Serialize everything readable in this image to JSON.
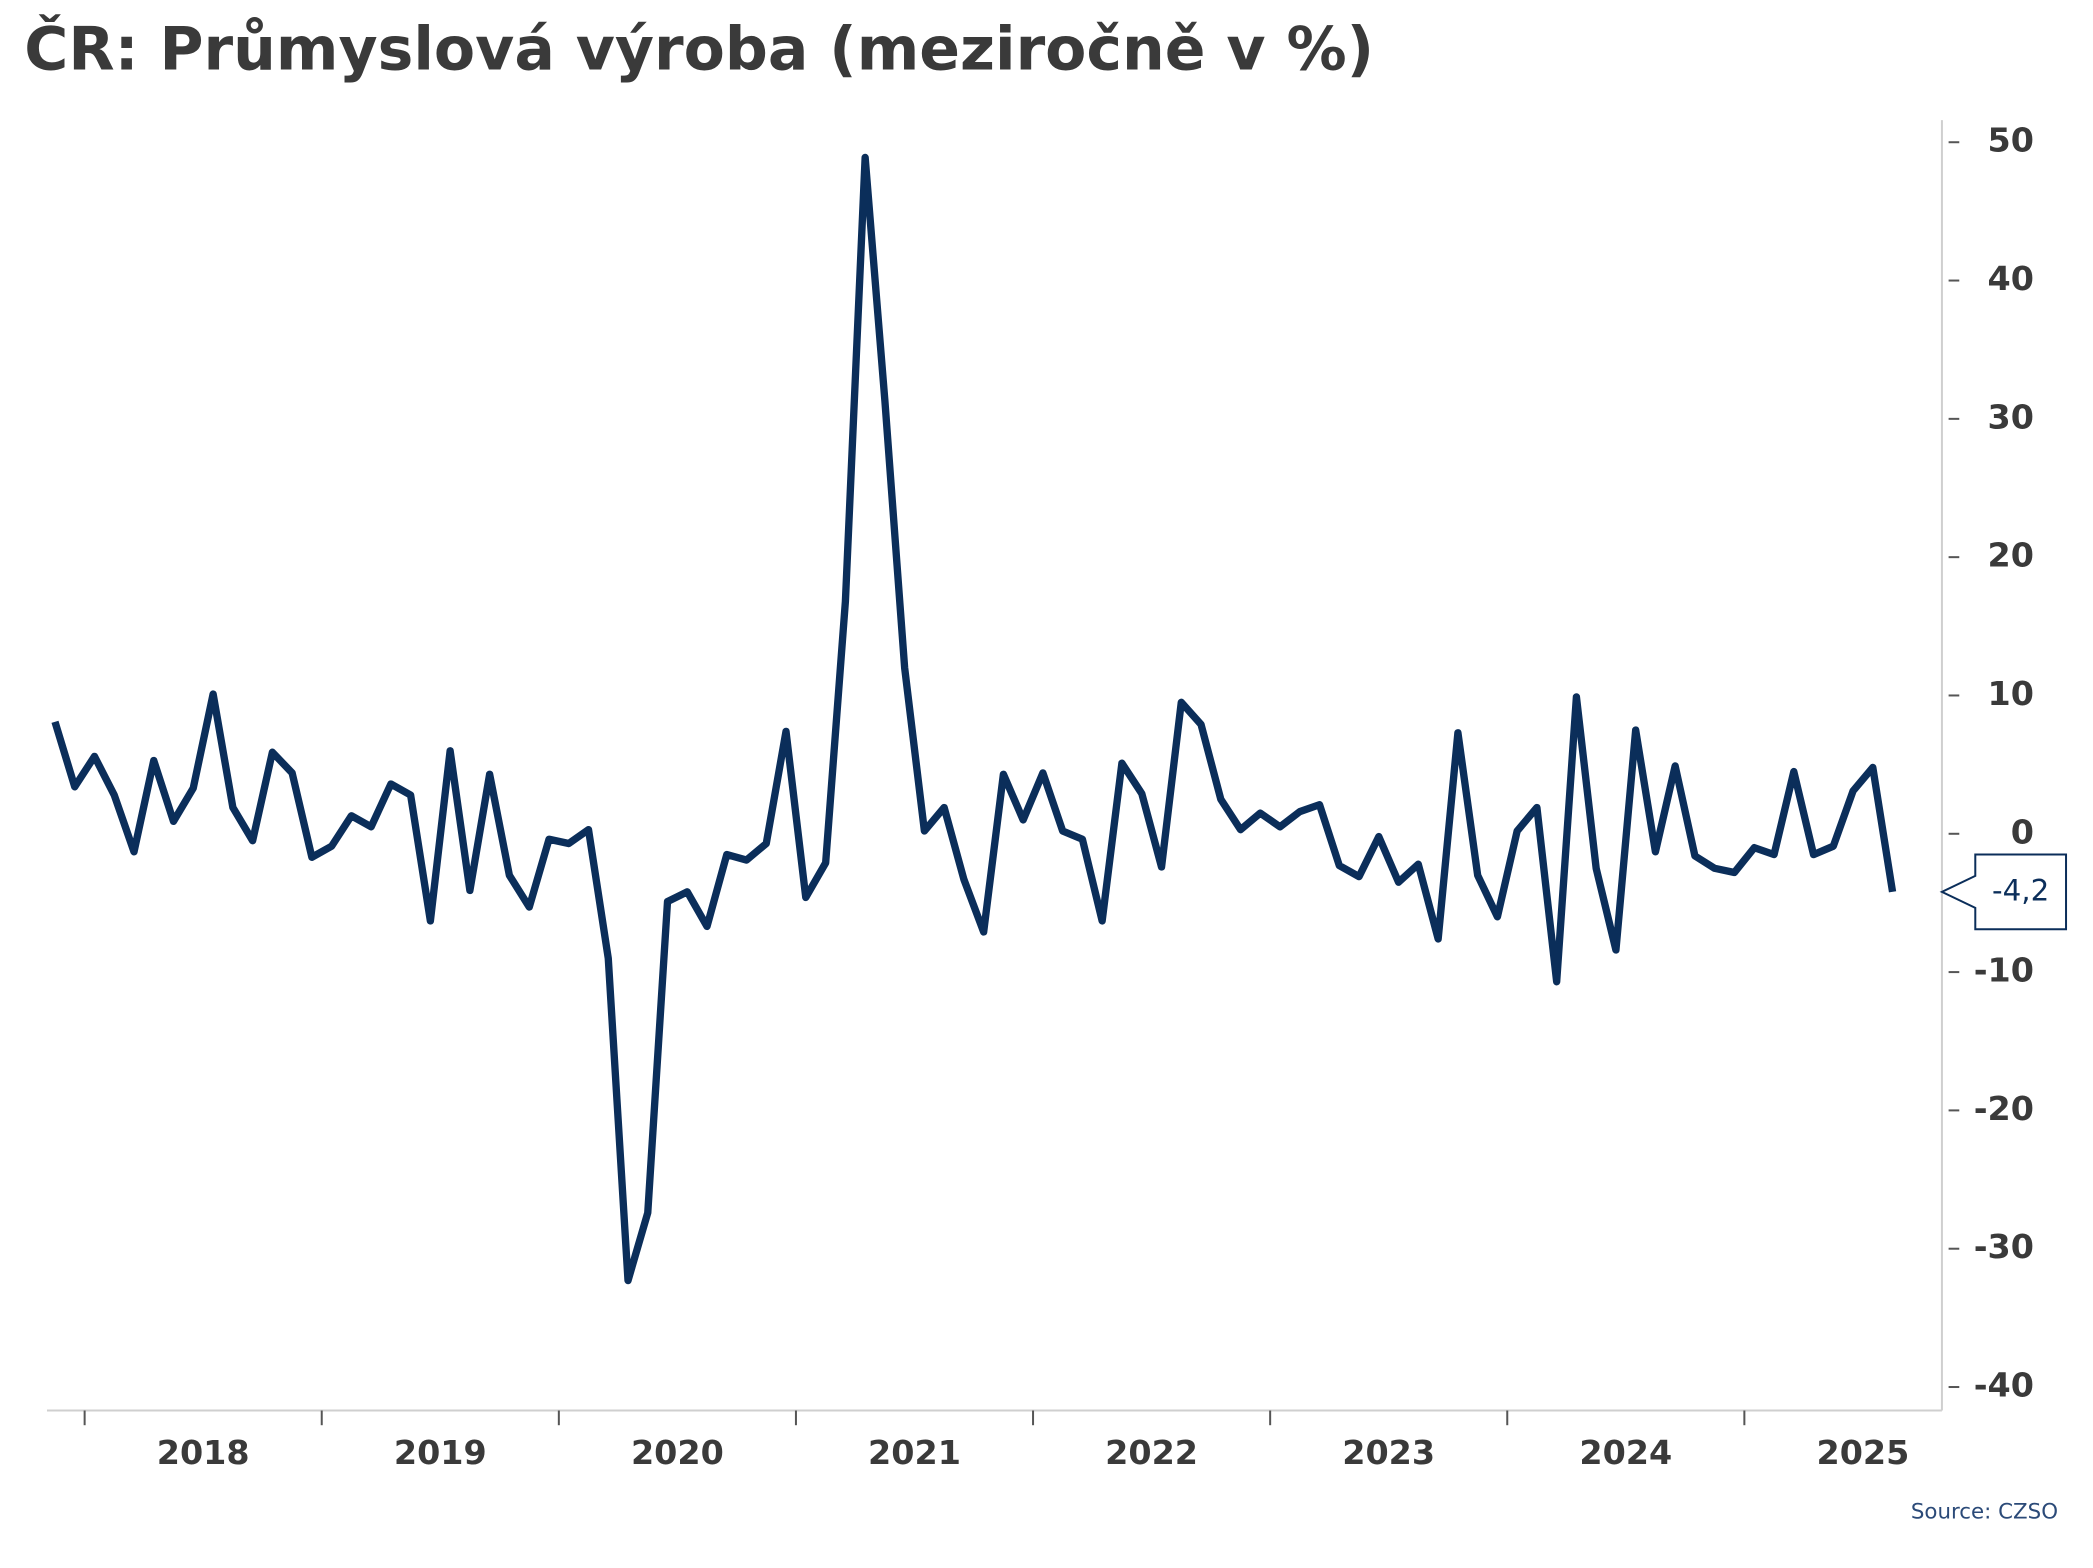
{
  "chart_data": {
    "type": "line",
    "title": "ČR: Průmyslová výroba (meziročně v %)",
    "source": "Source: CZSO",
    "categories": [
      null,
      null,
      "2018",
      null,
      null,
      null,
      null,
      null,
      null,
      null,
      null,
      null,
      null,
      null,
      "2019",
      null,
      null,
      null,
      null,
      null,
      null,
      null,
      null,
      null,
      null,
      null,
      "2020",
      null,
      null,
      null,
      null,
      null,
      null,
      null,
      null,
      null,
      null,
      null,
      "2021",
      null,
      null,
      null,
      null,
      null,
      null,
      null,
      null,
      null,
      null,
      null,
      "2022",
      null,
      null,
      null,
      null,
      null,
      null,
      null,
      null,
      null,
      null,
      null,
      "2023",
      null,
      null,
      null,
      null,
      null,
      null,
      null,
      null,
      null,
      null,
      null,
      "2024",
      null,
      null,
      null,
      null,
      null,
      null,
      null,
      null,
      null,
      null,
      null,
      "2025",
      null,
      null,
      null,
      null,
      null,
      null,
      null
    ],
    "series": [
      {
        "color": "#0b2e5a",
        "values": [
          8.1,
          3.4,
          5.6,
          2.8,
          -1.3,
          5.3,
          0.9,
          3.3,
          10.1,
          1.9,
          -0.5,
          5.9,
          4.4,
          -1.7,
          -0.9,
          1.3,
          0.5,
          3.6,
          2.8,
          -6.3,
          6.0,
          -4.1,
          4.3,
          -3.0,
          -5.3,
          -0.4,
          -0.7,
          0.3,
          -9.0,
          -32.3,
          -27.4,
          -4.9,
          -4.2,
          -6.7,
          -1.5,
          -1.9,
          -0.7,
          7.4,
          -4.6,
          -2.1,
          16.8,
          48.9,
          31.3,
          12.0,
          0.2,
          1.9,
          -3.3,
          -7.1,
          4.3,
          1.0,
          4.4,
          0.2,
          -0.4,
          -6.3,
          5.1,
          2.9,
          -2.4,
          9.5,
          7.9,
          2.5,
          0.3,
          1.5,
          0.5,
          1.6,
          2.1,
          -2.3,
          -3.1,
          -0.2,
          -3.5,
          -2.2,
          -7.6,
          7.3,
          -3.0,
          -6.0,
          0.2,
          1.9,
          -10.7,
          9.9,
          -2.5,
          -8.4,
          7.5,
          -1.3,
          4.9,
          -1.6,
          -2.5,
          -2.8,
          -1.0,
          -1.5,
          4.5,
          -1.5,
          -0.9,
          3.1,
          4.8,
          -4.2
        ],
        "value_labels": [
          null,
          null,
          null,
          null,
          null,
          null,
          null,
          null,
          null,
          null,
          null,
          null,
          null,
          null,
          null,
          null,
          null,
          null,
          null,
          null,
          null,
          null,
          null,
          null,
          null,
          null,
          null,
          null,
          null,
          null,
          null,
          null,
          null,
          null,
          null,
          null,
          null,
          null,
          null,
          null,
          null,
          null,
          null,
          null,
          null,
          null,
          null,
          null,
          null,
          null,
          null,
          null,
          null,
          null,
          null,
          null,
          null,
          null,
          null,
          null,
          null,
          null,
          null,
          null,
          null,
          null,
          null,
          null,
          null,
          null,
          null,
          null,
          null,
          null,
          null,
          null,
          null,
          null,
          null,
          null,
          null,
          null,
          null,
          null,
          null,
          null,
          null,
          null,
          null,
          null,
          null,
          null,
          null,
          "-4,2"
        ]
      }
    ],
    "ylim": [
      -41.7,
      51.6
    ],
    "yticks": [
      -40,
      -30,
      -20,
      -10,
      0,
      10,
      20,
      30,
      40,
      50
    ],
    "y_axis_side": "right"
  }
}
